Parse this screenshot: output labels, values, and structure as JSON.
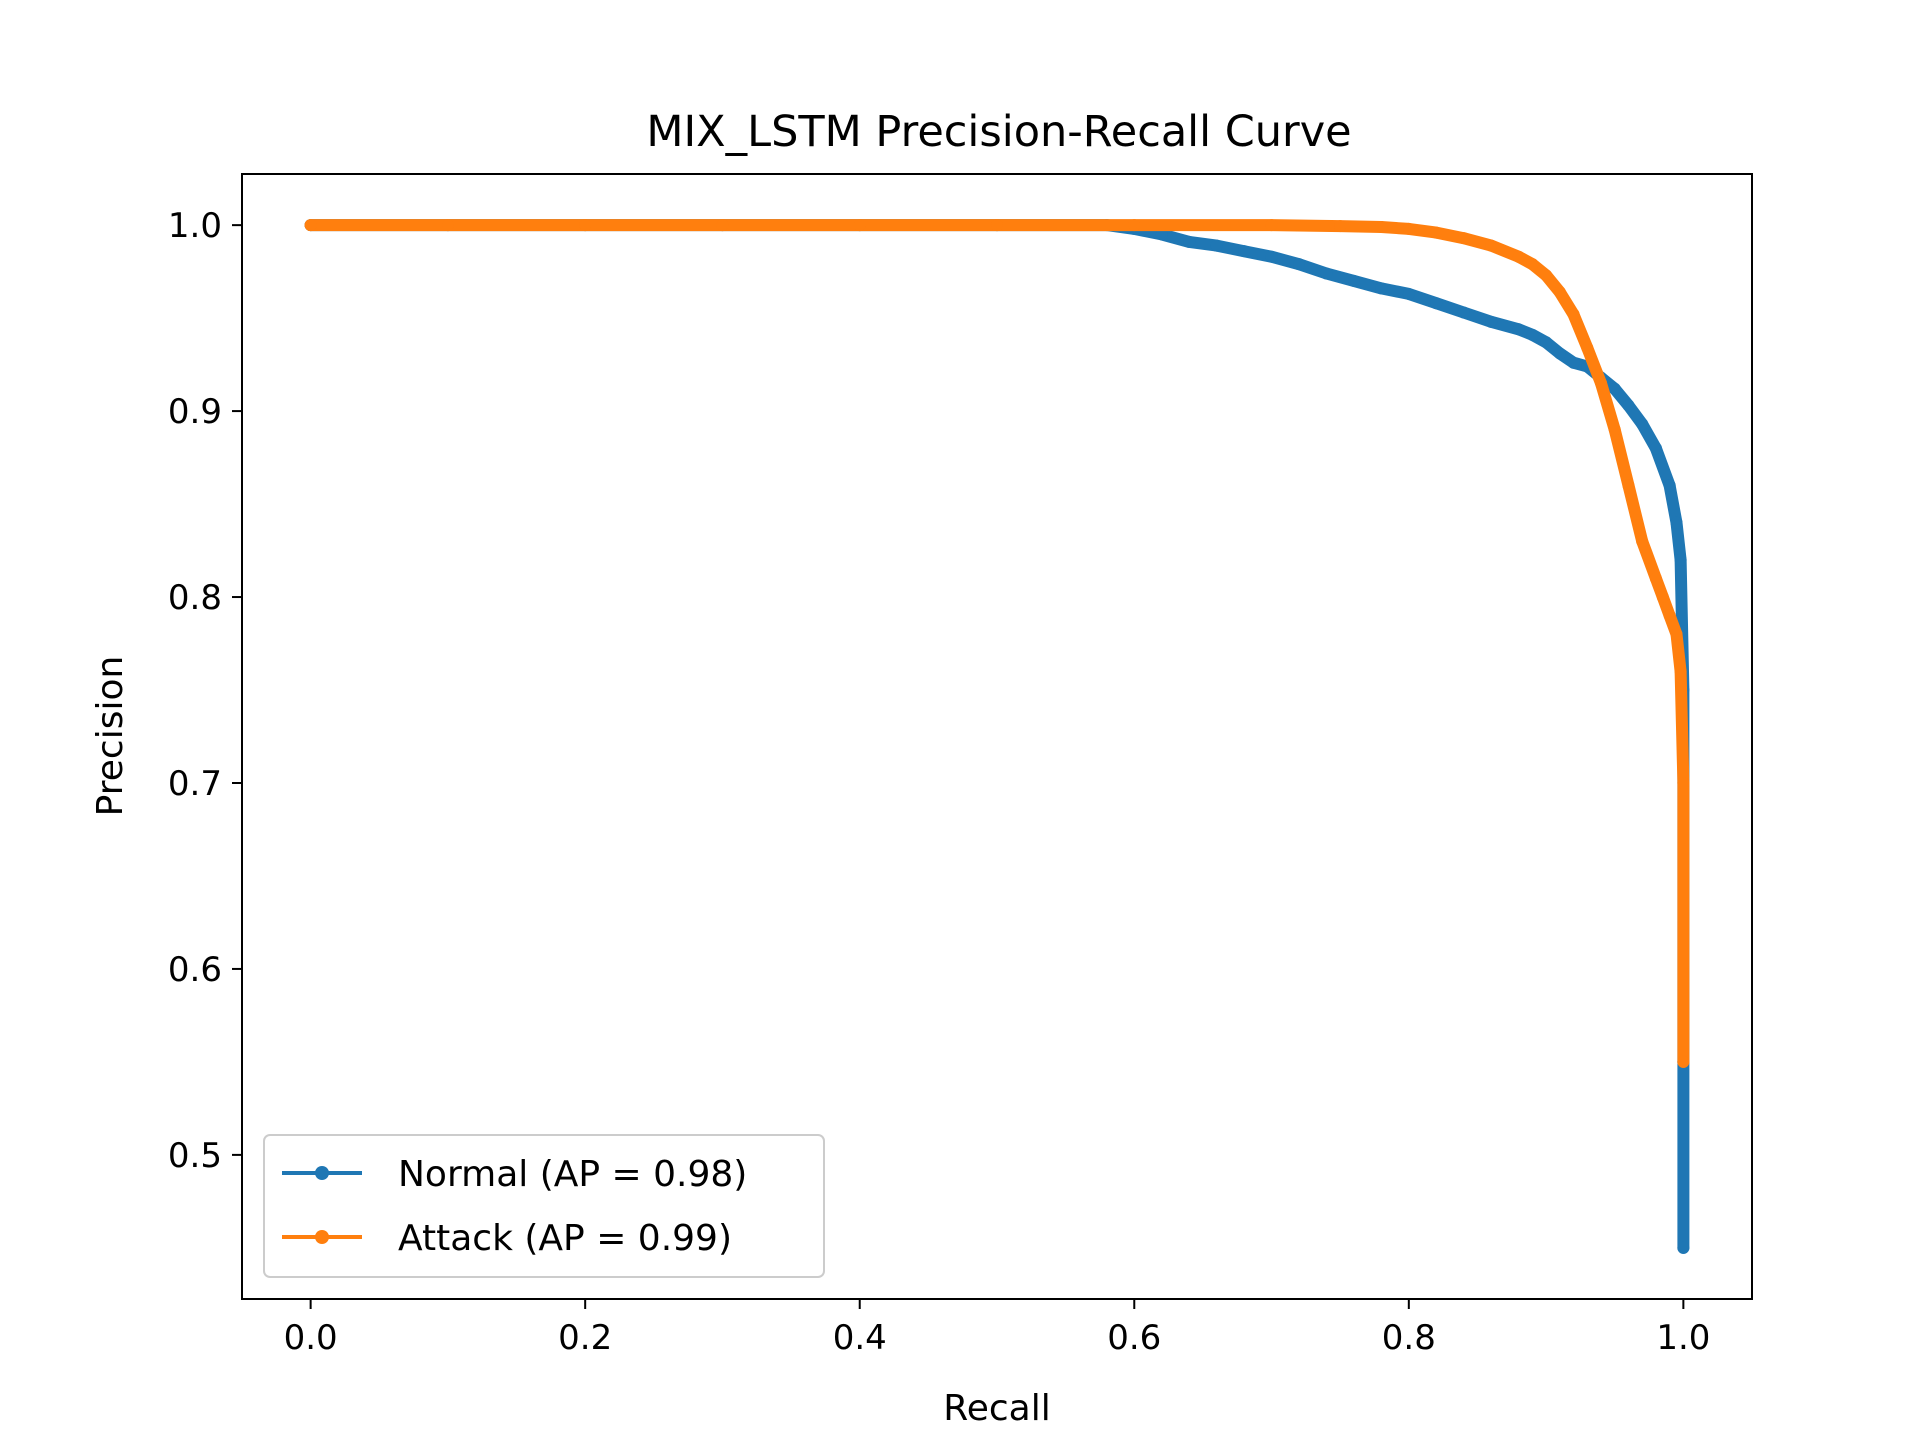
{
  "chart_data": {
    "type": "line",
    "title": "MIX_LSTM Precision-Recall Curve",
    "xlabel": "Recall",
    "ylabel": "Precision",
    "xlim": [
      -0.05,
      1.05
    ],
    "ylim": [
      0.4225,
      1.0275
    ],
    "xticks": [
      0.0,
      0.2,
      0.4,
      0.6,
      0.8,
      1.0
    ],
    "xtick_labels": [
      "0.0",
      "0.2",
      "0.4",
      "0.6",
      "0.8",
      "1.0"
    ],
    "yticks": [
      0.5,
      0.6,
      0.7,
      0.8,
      0.9,
      1.0
    ],
    "ytick_labels": [
      "0.5",
      "0.6",
      "0.7",
      "0.8",
      "0.9",
      "1.0"
    ],
    "grid": false,
    "legend_position": "lower-left",
    "series": [
      {
        "name": "Normal (AP = 0.98)",
        "color": "#1f77b4",
        "marker": "dot",
        "x": [
          0.0,
          0.1,
          0.2,
          0.3,
          0.4,
          0.5,
          0.58,
          0.6,
          0.62,
          0.64,
          0.66,
          0.68,
          0.7,
          0.72,
          0.74,
          0.76,
          0.78,
          0.8,
          0.82,
          0.84,
          0.86,
          0.88,
          0.89,
          0.9,
          0.91,
          0.92,
          0.93,
          0.94,
          0.95,
          0.96,
          0.97,
          0.98,
          0.99,
          0.995,
          0.998,
          1.0,
          1.0,
          1.0
        ],
        "y": [
          1.0,
          1.0,
          1.0,
          1.0,
          1.0,
          1.0,
          1.0,
          0.998,
          0.995,
          0.991,
          0.989,
          0.986,
          0.983,
          0.979,
          0.974,
          0.97,
          0.966,
          0.963,
          0.958,
          0.953,
          0.948,
          0.944,
          0.941,
          0.937,
          0.931,
          0.926,
          0.924,
          0.918,
          0.912,
          0.903,
          0.893,
          0.88,
          0.86,
          0.84,
          0.82,
          0.75,
          0.55,
          0.45
        ]
      },
      {
        "name": "Attack (AP = 0.99)",
        "color": "#ff7f0e",
        "marker": "dot",
        "x": [
          0.0,
          0.1,
          0.2,
          0.3,
          0.4,
          0.5,
          0.6,
          0.7,
          0.75,
          0.78,
          0.8,
          0.82,
          0.84,
          0.86,
          0.88,
          0.89,
          0.9,
          0.91,
          0.92,
          0.93,
          0.94,
          0.95,
          0.96,
          0.97,
          0.98,
          0.985,
          0.99,
          0.995,
          0.998,
          1.0,
          1.0
        ],
        "y": [
          1.0,
          1.0,
          1.0,
          1.0,
          1.0,
          1.0,
          1.0,
          1.0,
          0.9995,
          0.999,
          0.998,
          0.996,
          0.993,
          0.989,
          0.983,
          0.979,
          0.973,
          0.964,
          0.952,
          0.934,
          0.915,
          0.89,
          0.86,
          0.83,
          0.81,
          0.8,
          0.79,
          0.78,
          0.76,
          0.7,
          0.55
        ]
      }
    ]
  }
}
